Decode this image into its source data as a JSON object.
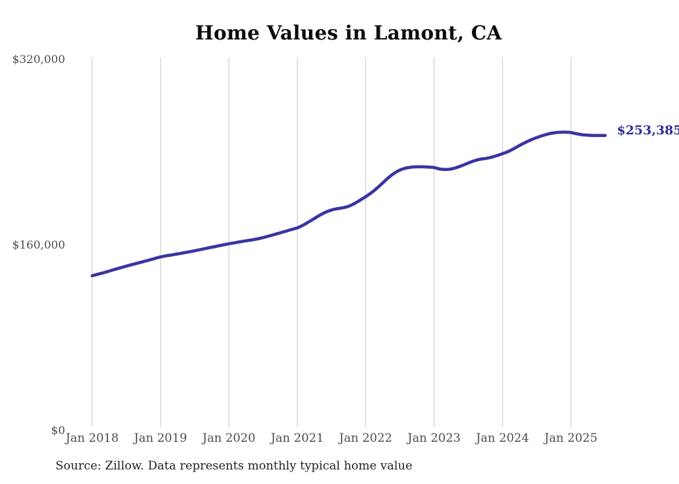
{
  "chart_data": {
    "type": "line",
    "title": "Home Values in Lamont, CA",
    "series_name": "Monthly typical home value",
    "unit": "USD",
    "x": [
      "2018-01",
      "2018-02",
      "2018-03",
      "2018-04",
      "2018-05",
      "2018-06",
      "2018-07",
      "2018-08",
      "2018-09",
      "2018-10",
      "2018-11",
      "2018-12",
      "2019-01",
      "2019-02",
      "2019-03",
      "2019-04",
      "2019-05",
      "2019-06",
      "2019-07",
      "2019-08",
      "2019-09",
      "2019-10",
      "2019-11",
      "2019-12",
      "2020-01",
      "2020-02",
      "2020-03",
      "2020-04",
      "2020-05",
      "2020-06",
      "2020-07",
      "2020-08",
      "2020-09",
      "2020-10",
      "2020-11",
      "2020-12",
      "2021-01",
      "2021-02",
      "2021-03",
      "2021-04",
      "2021-05",
      "2021-06",
      "2021-07",
      "2021-08",
      "2021-09",
      "2021-10",
      "2021-11",
      "2021-12",
      "2022-01",
      "2022-02",
      "2022-03",
      "2022-04",
      "2022-05",
      "2022-06",
      "2022-07",
      "2022-08",
      "2022-09",
      "2022-10",
      "2022-11",
      "2022-12",
      "2023-01",
      "2023-02",
      "2023-03",
      "2023-04",
      "2023-05",
      "2023-06",
      "2023-07",
      "2023-08",
      "2023-09",
      "2023-10",
      "2023-11",
      "2023-12",
      "2024-01",
      "2024-02",
      "2024-03",
      "2024-04",
      "2024-05",
      "2024-06",
      "2024-07",
      "2024-08",
      "2024-09",
      "2024-10",
      "2024-11",
      "2024-12",
      "2025-01",
      "2025-02",
      "2025-03",
      "2025-04",
      "2025-05",
      "2025-06",
      "2025-07"
    ],
    "values": [
      132400,
      133700,
      135000,
      136400,
      137900,
      139300,
      140700,
      142000,
      143300,
      144600,
      145900,
      147300,
      148600,
      149600,
      150400,
      151200,
      152100,
      153000,
      154000,
      155000,
      156000,
      157000,
      158000,
      159000,
      160000,
      160800,
      161700,
      162500,
      163300,
      164200,
      165300,
      166600,
      168000,
      169400,
      170800,
      172300,
      173700,
      176000,
      178800,
      181800,
      184800,
      187300,
      189100,
      190200,
      191000,
      192300,
      194600,
      197500,
      200600,
      204000,
      208000,
      212500,
      217000,
      220800,
      223500,
      225200,
      226000,
      226300,
      226300,
      226100,
      225700,
      224400,
      224000,
      224500,
      225800,
      227600,
      229600,
      231400,
      232800,
      233500,
      234500,
      236000,
      237600,
      239500,
      242000,
      244800,
      247300,
      249600,
      251500,
      253200,
      254600,
      255600,
      256100,
      256200,
      255900,
      254800,
      254000,
      253600,
      253400,
      253400,
      253385
    ],
    "last_value": 253385,
    "end_label": "$253,385",
    "x_tick_labels": [
      "Jan 2018",
      "Jan 2019",
      "Jan 2020",
      "Jan 2021",
      "Jan 2022",
      "Jan 2023",
      "Jan 2024",
      "Jan 2025"
    ],
    "x_tick_month_indices": [
      0,
      12,
      24,
      36,
      48,
      60,
      72,
      84
    ],
    "y_ticks": [
      {
        "value": 0,
        "label": "$0"
      },
      {
        "value": 160000,
        "label": "$160,000"
      },
      {
        "value": 320000,
        "label": "$320,000"
      }
    ],
    "ylim": [
      0,
      320000
    ],
    "grid": "vertical-only",
    "legend": "none",
    "line_color": "#3a34a2",
    "end_label_color": "#2e2a93",
    "gridline_color": "#c9c9c9",
    "source_note": "Source: Zillow. Data represents monthly typical home value"
  }
}
